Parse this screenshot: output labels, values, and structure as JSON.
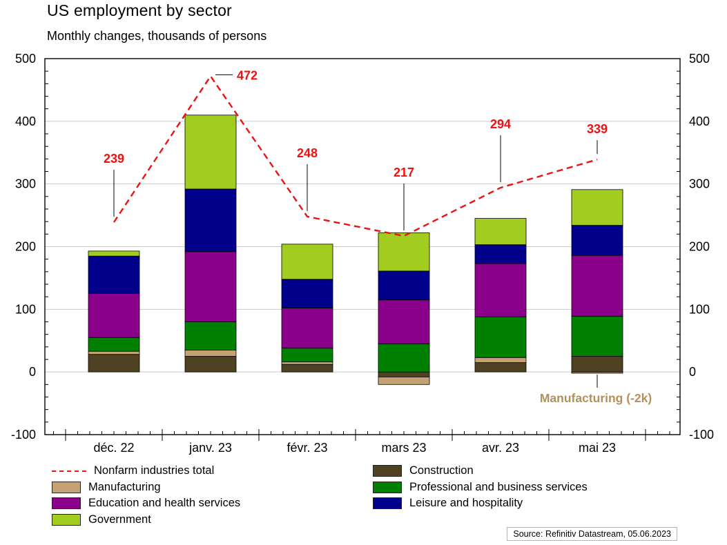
{
  "header": {
    "title": "US employment by sector",
    "subtitle": "Monthly changes, thousands of persons"
  },
  "chart_data": {
    "type": "bar",
    "stacked": true,
    "title": "US employment by sector",
    "subtitle": "Monthly changes, thousands of persons",
    "categories": [
      "déc. 22",
      "janv. 23",
      "févr. 23",
      "mars 23",
      "avr. 23",
      "mai 23"
    ],
    "series": [
      {
        "name": "Construction",
        "color": "#4e4223",
        "values": [
          28,
          25,
          12,
          -8,
          15,
          25
        ]
      },
      {
        "name": "Manufacturing",
        "color": "#c5a275",
        "values": [
          5,
          10,
          4,
          -12,
          8,
          -2
        ]
      },
      {
        "name": "Professional and business services",
        "color": "#008000",
        "values": [
          22,
          45,
          22,
          45,
          65,
          64
        ]
      },
      {
        "name": "Education and health services",
        "color": "#8b008b",
        "values": [
          70,
          112,
          64,
          70,
          85,
          97
        ]
      },
      {
        "name": "Leisure and hospitality",
        "color": "#00008b",
        "values": [
          60,
          100,
          46,
          46,
          30,
          48
        ]
      },
      {
        "name": "Government",
        "color": "#a2cc20",
        "values": [
          8,
          118,
          56,
          61,
          42,
          57
        ]
      }
    ],
    "line_series": {
      "name": "Nonfarm industries total",
      "color": "#ee1111",
      "style": "dashed",
      "values": [
        239,
        472,
        248,
        217,
        294,
        339
      ]
    },
    "line_labels": [
      "239",
      "472",
      "248",
      "217",
      "294",
      "339"
    ],
    "ylim": [
      -100,
      500
    ],
    "yticks": [
      -100,
      0,
      100,
      200,
      300,
      400,
      500
    ],
    "grid": true,
    "legend_position": "bottom"
  },
  "annotation": {
    "text": "Manufacturing (-2k)",
    "color": "#b2905e"
  },
  "legend": {
    "columns": [
      [
        {
          "type": "line",
          "color": "#ee1111",
          "label": "Nonfarm industries total"
        },
        {
          "type": "box",
          "color": "#c5a275",
          "label": "Manufacturing"
        },
        {
          "type": "box",
          "color": "#8b008b",
          "label": "Education and health services"
        },
        {
          "type": "box",
          "color": "#a2cc20",
          "label": "Government"
        }
      ],
      [
        {
          "type": "box",
          "color": "#4e4223",
          "label": "Construction"
        },
        {
          "type": "box",
          "color": "#008000",
          "label": "Professional and business services"
        },
        {
          "type": "box",
          "color": "#00008b",
          "label": "Leisure and hospitality"
        }
      ]
    ]
  },
  "source": "Source: Refinitiv Datastream, 05.06.2023"
}
